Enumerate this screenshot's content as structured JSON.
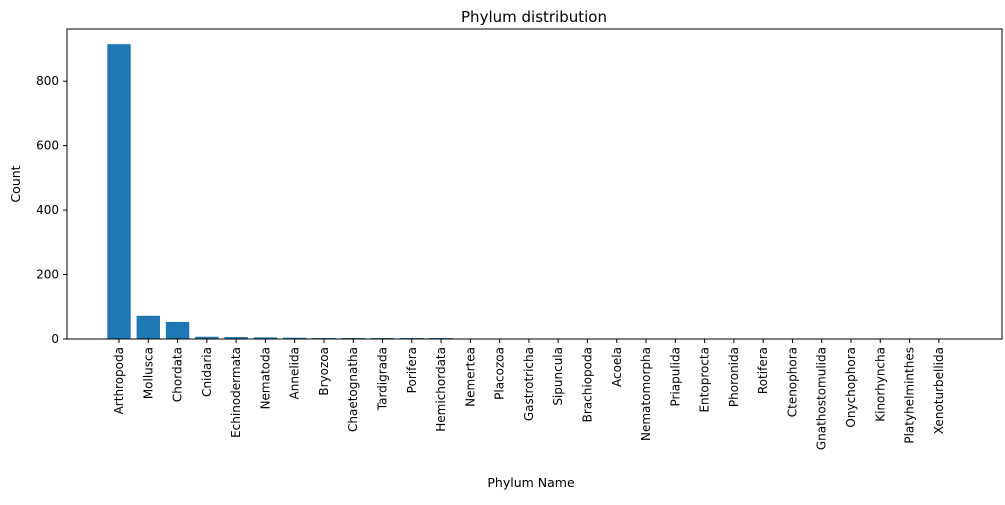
{
  "chart_data": {
    "type": "bar",
    "title": "Phylum distribution",
    "xlabel": "Phylum Name",
    "ylabel": "Count",
    "categories": [
      "Arthropoda",
      "Mollusca",
      "Chordata",
      "Cnidaria",
      "Echinodermata",
      "Nematoda",
      "Annelida",
      "Bryozoa",
      "Chaetognatha",
      "Tardigrada",
      "Porifera",
      "Hemichordata",
      "Nemertea",
      "Placozoa",
      "Gastrotricha",
      "Sipuncula",
      "Brachiopoda",
      "Acoela",
      "Nematomorpha",
      "Priapulida",
      "Entoprocta",
      "Phoronida",
      "Rotifera",
      "Ctenophora",
      "Gnathostomulida",
      "Onychophora",
      "Kinorhyncha",
      "Platyhelminthes",
      "Xenoturbellida"
    ],
    "values": [
      915,
      72,
      53,
      7,
      6,
      5,
      4,
      3,
      3,
      3,
      3,
      3,
      1,
      1,
      1,
      1,
      1,
      1,
      1,
      1,
      1,
      1,
      1,
      1,
      1,
      1,
      1,
      1,
      1
    ],
    "ylim": [
      0,
      962
    ],
    "yticks": [
      0,
      200,
      400,
      600,
      800
    ],
    "bar_color": "#1f77b4",
    "grid": false,
    "legend": false
  }
}
